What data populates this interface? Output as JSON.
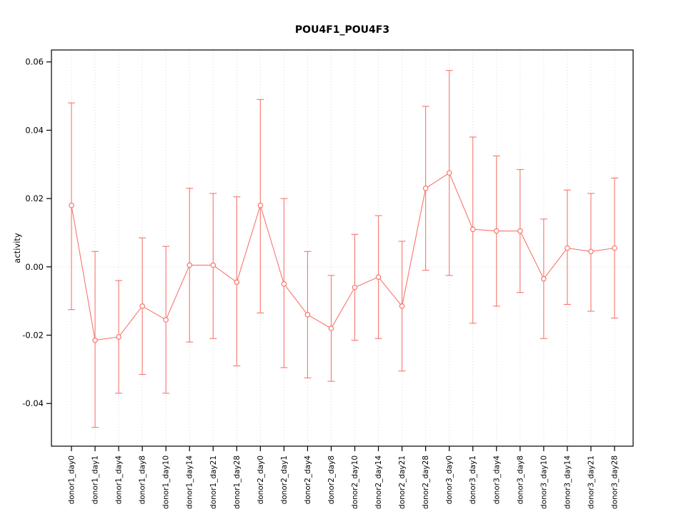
{
  "page": {
    "background": "#ffffff"
  },
  "chart_data": {
    "type": "line",
    "title": "POU4F1_POU4F3",
    "xlabel": "",
    "ylabel": "activity",
    "legend": "none",
    "grid": {
      "vertical_dotted_per_category": true,
      "zero_line_dotted": true
    },
    "color": "#f8766d",
    "grid_color": "#dcdcdc",
    "axis_color": "#000000",
    "point_style": "open-circle",
    "error_bars": true,
    "yticks": [
      -0.04,
      -0.02,
      0.0,
      0.02,
      0.04,
      0.06
    ],
    "ylim": [
      -0.0525,
      0.0635
    ],
    "categories": [
      "donor1_day0",
      "donor1_day1",
      "donor1_day4",
      "donor1_day8",
      "donor1_day10",
      "donor1_day14",
      "donor1_day21",
      "donor1_day28",
      "donor2_day0",
      "donor2_day1",
      "donor2_day4",
      "donor2_day8",
      "donor2_day10",
      "donor2_day14",
      "donor2_day21",
      "donor2_day28",
      "donor3_day0",
      "donor3_day1",
      "donor3_day4",
      "donor3_day8",
      "donor3_day10",
      "donor3_day14",
      "donor3_day21",
      "donor3_day28"
    ],
    "series": [
      {
        "name": "POU4F1_POU4F3 activity",
        "means": [
          0.018,
          -0.0215,
          -0.0205,
          -0.0115,
          -0.0155,
          0.0005,
          0.0005,
          -0.0045,
          0.018,
          -0.005,
          -0.014,
          -0.018,
          -0.006,
          -0.003,
          -0.0115,
          0.023,
          0.0275,
          0.011,
          0.0105,
          0.0105,
          -0.0035,
          0.0055,
          0.0045,
          0.0055
        ],
        "upper": [
          0.048,
          0.0045,
          -0.004,
          0.0085,
          0.006,
          0.023,
          0.0215,
          0.0205,
          0.049,
          0.02,
          0.0045,
          -0.0025,
          0.0095,
          0.015,
          0.0075,
          0.047,
          0.0575,
          0.038,
          0.0325,
          0.0285,
          0.014,
          0.0225,
          0.0215,
          0.026
        ],
        "lower": [
          -0.0125,
          -0.047,
          -0.037,
          -0.0315,
          -0.037,
          -0.022,
          -0.021,
          -0.029,
          -0.0135,
          -0.0295,
          -0.0325,
          -0.0335,
          -0.0215,
          -0.021,
          -0.0305,
          -0.001,
          -0.0025,
          -0.0165,
          -0.0115,
          -0.0075,
          -0.021,
          -0.011,
          -0.013,
          -0.015
        ]
      }
    ]
  }
}
